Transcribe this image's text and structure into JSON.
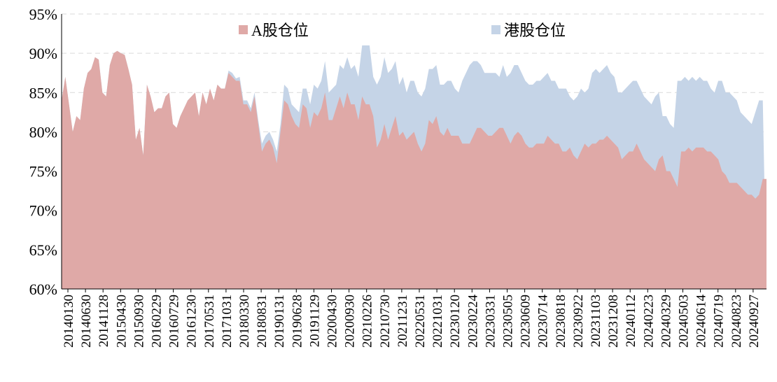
{
  "chart_data": {
    "type": "area",
    "title": "",
    "xlabel": "",
    "ylabel": "",
    "ylim": [
      60,
      95
    ],
    "y_unit": "%",
    "y_ticks": [
      "60%",
      "65%",
      "70%",
      "75%",
      "80%",
      "85%",
      "90%",
      "95%"
    ],
    "x_tick_labels": [
      "20140130",
      "20140630",
      "20141128",
      "20150430",
      "20150930",
      "20160229",
      "20160729",
      "20161230",
      "20170531",
      "20171031",
      "20180330",
      "20180831",
      "20190131",
      "20190628",
      "20191129",
      "20200430",
      "20200930",
      "20210226",
      "20210730",
      "20211231",
      "20220531",
      "20221031",
      "20230120",
      "20230224",
      "20230331",
      "20230505",
      "20230609",
      "20230714",
      "20230818",
      "20230922",
      "20231103",
      "20231208",
      "20240112",
      "20240223",
      "20240329",
      "20240503",
      "20240614",
      "20240719",
      "20240823",
      "20240927"
    ],
    "grid": true,
    "legend_position": "top",
    "colors": {
      "A股仓位": "#dfa9a7",
      "港股仓位": "#c5d4e7"
    },
    "series": [
      {
        "name": "A股仓位",
        "values": [
          84.0,
          87.0,
          83.5,
          80.0,
          82.0,
          81.5,
          85.5,
          87.5,
          88.0,
          89.5,
          89.2,
          85.0,
          84.5,
          88.5,
          90.0,
          90.3,
          90.0,
          89.8,
          88.0,
          86.0,
          79.0,
          80.5,
          77.0,
          86.0,
          84.5,
          82.5,
          83.0,
          83.0,
          84.5,
          85.0,
          81.0,
          80.5,
          82.0,
          83.0,
          84.0,
          84.5,
          85.0,
          82.0,
          85.0,
          83.5,
          85.5,
          84.0,
          86.0,
          85.5,
          85.5,
          87.5,
          87.0,
          86.5,
          86.5,
          83.5,
          83.5,
          82.5,
          84.5,
          81.0,
          77.5,
          78.5,
          79.0,
          78.0,
          76.0,
          80.0,
          84.0,
          83.5,
          82.0,
          81.0,
          80.5,
          83.5,
          83.0,
          80.5,
          82.5,
          82.0,
          83.0,
          85.0,
          81.5,
          81.5,
          83.0,
          84.5,
          83.0,
          85.0,
          83.5,
          83.5,
          81.5,
          84.5,
          83.5,
          83.5,
          82.0,
          78.0,
          79.0,
          81.0,
          79.0,
          80.5,
          82.0,
          79.5,
          80.0,
          79.0,
          79.5,
          80.0,
          78.5,
          77.5,
          78.5,
          81.5,
          81.0,
          82.0,
          80.0,
          79.5,
          80.5,
          79.5,
          79.5,
          79.5,
          78.5,
          78.5,
          78.5,
          79.5,
          80.5,
          80.5,
          80.0,
          79.5,
          79.5,
          80.0,
          80.5,
          80.5,
          79.5,
          78.5,
          79.5,
          80.0,
          79.5,
          78.5,
          78.0,
          78.0,
          78.5,
          78.5,
          78.5,
          79.5,
          79.0,
          78.5,
          78.5,
          77.5,
          77.5,
          78.0,
          77.0,
          76.5,
          77.5,
          78.5,
          78.0,
          78.5,
          78.5,
          79.0,
          79.0,
          79.5,
          79.0,
          78.5,
          78.0,
          76.5,
          77.0,
          77.5,
          77.5,
          78.5,
          77.5,
          76.5,
          76.0,
          75.5,
          75.0,
          76.5,
          77.0,
          75.0,
          75.0,
          74.0,
          73.0,
          77.5,
          77.5,
          78.0,
          77.5,
          78.0,
          78.0,
          78.0,
          77.5,
          77.5,
          77.0,
          76.5,
          75.0,
          74.5,
          73.5,
          73.5,
          73.5,
          73.0,
          72.5,
          72.0,
          72.0,
          71.5,
          72.0,
          74.0,
          74.0
        ]
      },
      {
        "name": "港股仓位",
        "values": [
          84.0,
          87.0,
          83.5,
          80.0,
          82.0,
          81.5,
          85.5,
          87.5,
          88.0,
          89.5,
          89.2,
          85.0,
          84.5,
          88.5,
          90.0,
          90.3,
          90.0,
          89.8,
          88.0,
          86.0,
          79.0,
          80.5,
          77.0,
          86.0,
          84.5,
          82.5,
          83.0,
          83.0,
          84.5,
          85.0,
          81.0,
          80.5,
          82.0,
          83.0,
          84.0,
          84.5,
          85.0,
          82.0,
          85.0,
          83.5,
          85.5,
          84.0,
          86.0,
          85.5,
          85.5,
          87.8,
          87.5,
          86.8,
          87.0,
          84.0,
          84.0,
          83.0,
          85.0,
          81.5,
          78.5,
          79.5,
          80.0,
          79.0,
          77.5,
          81.0,
          86.0,
          85.5,
          83.5,
          83.0,
          82.5,
          85.5,
          85.5,
          83.5,
          86.0,
          85.5,
          86.5,
          89.0,
          85.0,
          85.5,
          86.0,
          88.5,
          88.0,
          89.5,
          88.0,
          88.5,
          87.0,
          91.0,
          91.0,
          91.0,
          87.0,
          86.0,
          87.0,
          89.5,
          87.5,
          88.0,
          89.0,
          86.0,
          87.0,
          85.0,
          86.5,
          86.5,
          85.0,
          84.5,
          85.5,
          88.0,
          88.0,
          88.5,
          86.0,
          86.0,
          86.5,
          86.5,
          85.5,
          85.0,
          86.5,
          87.5,
          88.5,
          89.0,
          89.0,
          88.5,
          87.5,
          87.5,
          87.5,
          87.5,
          87.0,
          88.5,
          87.0,
          87.5,
          88.5,
          88.5,
          87.5,
          86.5,
          86.0,
          86.0,
          86.5,
          86.5,
          87.0,
          87.5,
          86.5,
          86.5,
          85.5,
          85.5,
          85.5,
          84.5,
          84.0,
          84.5,
          85.5,
          85.0,
          85.5,
          87.5,
          88.0,
          87.5,
          88.0,
          88.5,
          87.5,
          87.0,
          85.0,
          85.0,
          85.5,
          86.0,
          86.5,
          86.5,
          85.5,
          84.5,
          84.0,
          83.5,
          84.5,
          85.0,
          82.0,
          82.0,
          81.0,
          80.5,
          86.5,
          86.5,
          87.0,
          86.5,
          87.0,
          86.5,
          87.0,
          86.5,
          86.5,
          85.5,
          85.0,
          86.5,
          86.5,
          85.0,
          85.0,
          84.5,
          84.0,
          82.5,
          82.0,
          81.5,
          81.0,
          82.5,
          84.0,
          84.0
        ]
      }
    ]
  }
}
